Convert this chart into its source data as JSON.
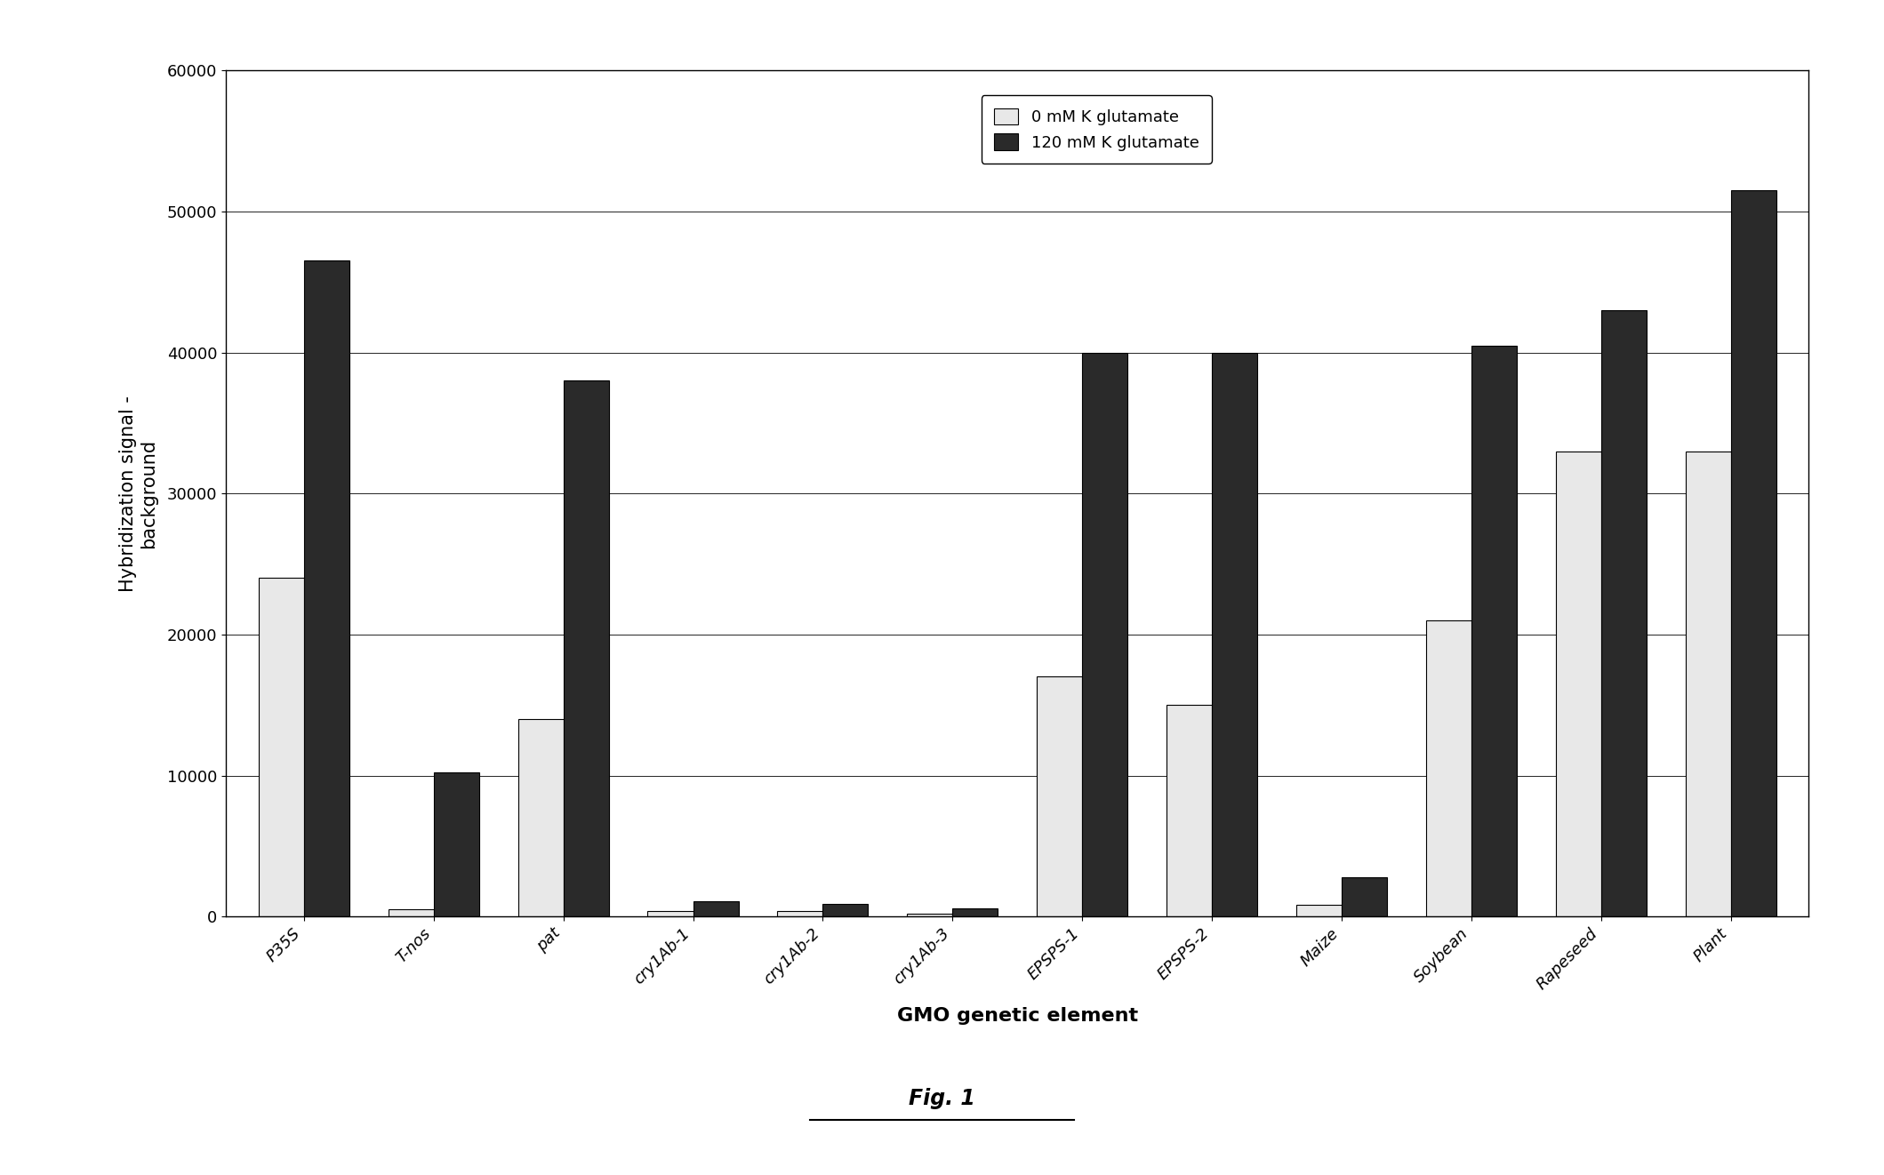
{
  "categories": [
    "P35S",
    "T-nos",
    "pat",
    "cry1Ab-1",
    "cry1Ab-2",
    "cry1Ab-3",
    "EPSPS-1",
    "EPSPS-2",
    "Maize",
    "Soybean",
    "Rapeseed",
    "Plant"
  ],
  "series_0_label": "0 mM K glutamate",
  "series_1_label": "120 mM K glutamate",
  "series_0_color": "#e8e8e8",
  "series_1_color": "#2a2a2a",
  "series_0_values": [
    24000,
    500,
    14000,
    400,
    400,
    200,
    17000,
    15000,
    800,
    21000,
    33000,
    33000
  ],
  "series_1_values": [
    46500,
    10200,
    38000,
    1100,
    900,
    600,
    40000,
    40000,
    2800,
    40500,
    43000,
    51500
  ],
  "ylabel": "Hybridization signal -\nbackground",
  "xlabel": "GMO genetic element",
  "ylim": [
    0,
    60000
  ],
  "yticks": [
    0,
    10000,
    20000,
    30000,
    40000,
    50000,
    60000
  ],
  "fig_caption": "Fig. 1",
  "axis_label_fontsize": 15,
  "tick_fontsize": 13,
  "legend_fontsize": 13,
  "bar_width": 0.35,
  "background_color": "#ffffff"
}
